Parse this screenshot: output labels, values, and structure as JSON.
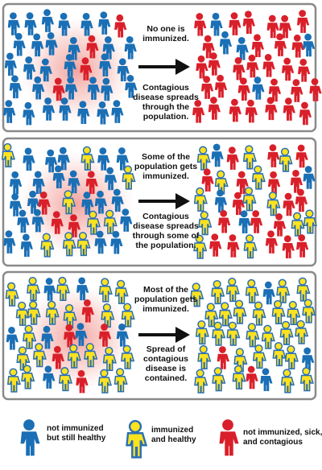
{
  "panels": [
    {
      "top_text": "No one is immunized.",
      "bottom_text": "Contagious disease spreads through the population."
    },
    {
      "top_text": "Some of the population gets immunized.",
      "bottom_text": "Contagious disease spreads through some of the population."
    },
    {
      "top_text": "Most of the population gets immunized.",
      "bottom_text": "Spread of contagious disease is contained."
    }
  ],
  "legend": [
    {
      "label": "not immunized but still healthy"
    },
    {
      "label": "immunized and healthy"
    },
    {
      "label": "not immunized, sick, and contagious"
    }
  ]
}
